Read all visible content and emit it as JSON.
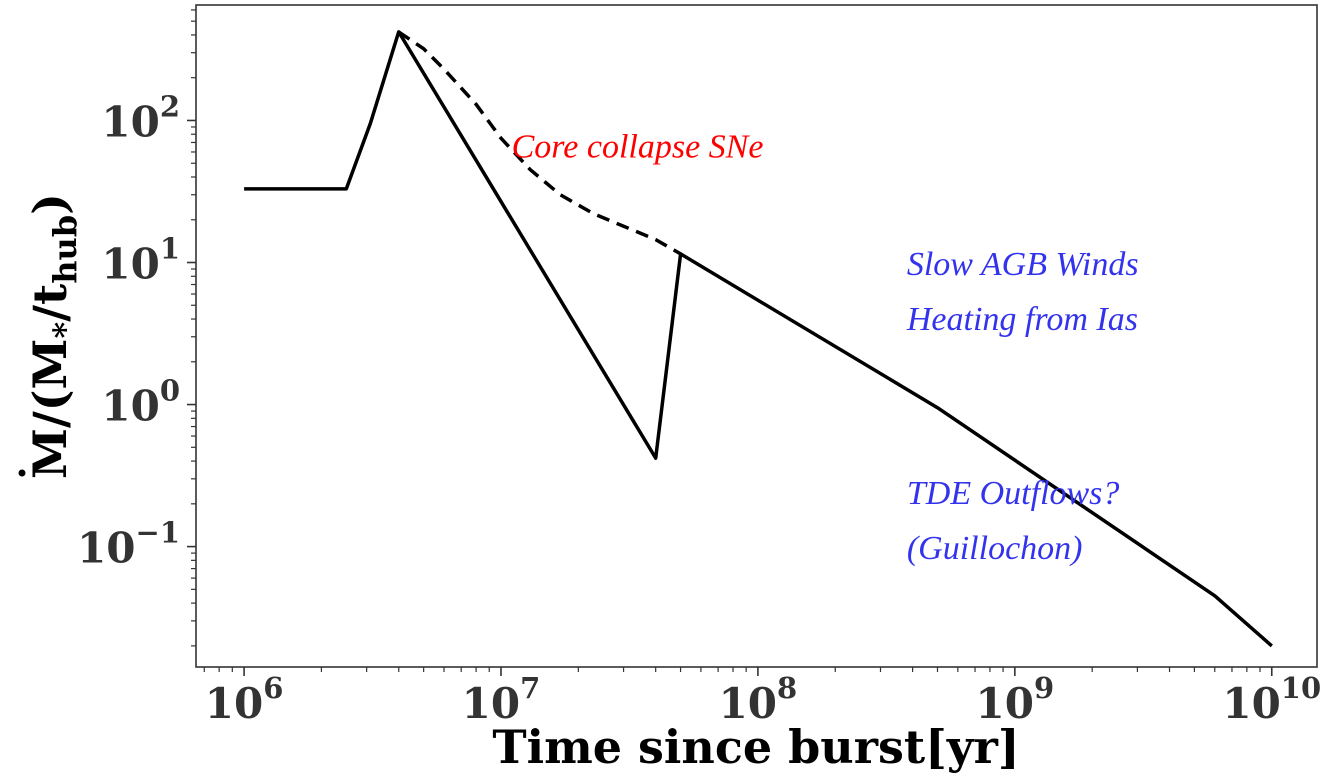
{
  "chart_data": {
    "type": "line",
    "xscale": "log",
    "yscale": "log",
    "xlim": [
      650000,
      15000000000
    ],
    "ylim": [
      0.0142,
      650
    ],
    "grid": false,
    "xlabel": "Time since burst[yr]",
    "ylabel_main": "M",
    "ylabel_tail": "/(M",
    "ylabel_sub1": "*",
    "ylabel_mid": "/t",
    "ylabel_sub2": "hub",
    "ylabel_end": ")",
    "x_ticks": [
      {
        "value": 1000000,
        "base": "10",
        "exp": "6"
      },
      {
        "value": 10000000,
        "base": "10",
        "exp": "7"
      },
      {
        "value": 100000000,
        "base": "10",
        "exp": "8"
      },
      {
        "value": 1000000000,
        "base": "10",
        "exp": "9"
      },
      {
        "value": 10000000000,
        "base": "10",
        "exp": "10"
      }
    ],
    "y_ticks": [
      {
        "value": 0.1,
        "base": "10",
        "exp": "−1"
      },
      {
        "value": 1,
        "base": "10",
        "exp": "0"
      },
      {
        "value": 10,
        "base": "10",
        "exp": "1"
      },
      {
        "value": 100,
        "base": "10",
        "exp": "2"
      }
    ],
    "series": [
      {
        "style": "solid",
        "color": "#000000",
        "x": [
          1000000,
          2500000,
          3100000,
          4000000,
          40000000,
          50000000,
          500000000,
          6000000000,
          10000000000
        ],
        "y": [
          33,
          33,
          95,
          420,
          0.42,
          11.5,
          0.95,
          0.045,
          0.02
        ]
      },
      {
        "style": "dashed",
        "color": "#000000",
        "x": [
          4000000,
          5000000,
          6000000,
          8000000,
          10000000,
          13000000,
          17000000,
          23000000,
          30000000,
          40000000,
          50000000
        ],
        "y": [
          420,
          320,
          230,
          130,
          75,
          45,
          30,
          22,
          18,
          14.5,
          11.5
        ]
      }
    ],
    "annotations": [
      {
        "text": "Core collapse SNe",
        "color": "#ff0000",
        "x": 11000000,
        "y": 55
      },
      {
        "text": "Slow AGB Winds",
        "color": "#3333ee",
        "x": 380000000,
        "y": 8.2
      },
      {
        "text": "Heating from Ias",
        "color": "#3333ee",
        "x": 380000000,
        "y": 3.35
      },
      {
        "text": "TDE Outflows?",
        "color": "#3333ee",
        "x": 380000000,
        "y": 0.2
      },
      {
        "text": "(Guillochon)",
        "color": "#3333ee",
        "x": 380000000,
        "y": 0.082
      }
    ]
  }
}
